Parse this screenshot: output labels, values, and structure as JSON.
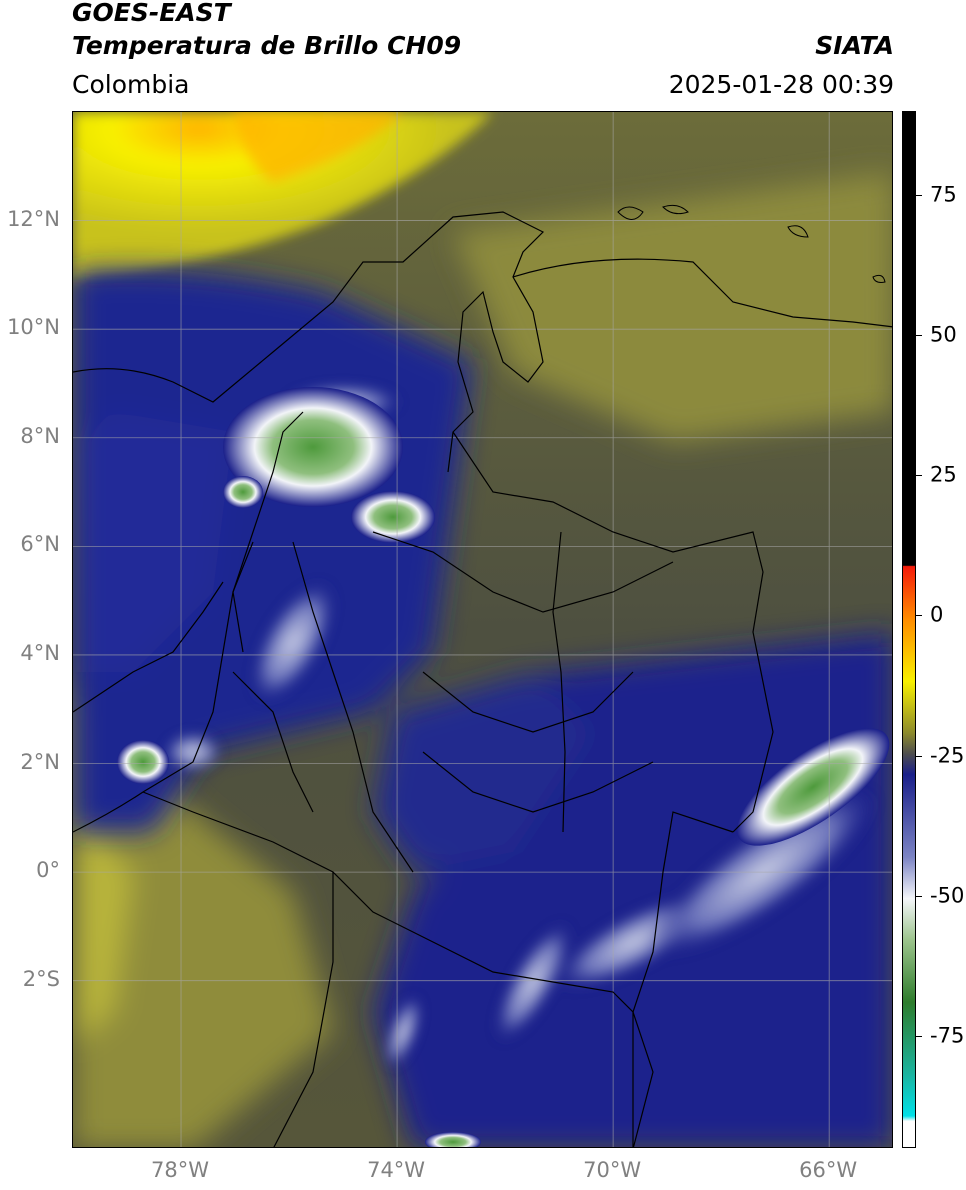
{
  "header": {
    "title_main": "GOES-EAST",
    "title_sub": "Temperatura de Brillo CH09",
    "org": "SIATA",
    "region": "Colombia",
    "datetime": "2025-01-28 00:39"
  },
  "map": {
    "lon_range": [
      -80,
      -64.8
    ],
    "lat_range": [
      -5.1,
      14
    ],
    "lat_labels": [
      {
        "value": 12,
        "text": "12°N"
      },
      {
        "value": 10,
        "text": "10°N"
      },
      {
        "value": 8,
        "text": "8°N"
      },
      {
        "value": 6,
        "text": "6°N"
      },
      {
        "value": 4,
        "text": "4°N"
      },
      {
        "value": 2,
        "text": "2°N"
      },
      {
        "value": 0,
        "text": "0°"
      },
      {
        "value": -2,
        "text": "2°S"
      }
    ],
    "lon_labels": [
      {
        "value": -78,
        "text": "78°W"
      },
      {
        "value": -74,
        "text": "74°W"
      },
      {
        "value": -70,
        "text": "70°W"
      },
      {
        "value": -66,
        "text": "66°W"
      }
    ],
    "colors": {
      "warm_yellow": "#f7f200",
      "orange": "#ffb300",
      "olive": "#9c9a3a",
      "dark_olive": "#55553c",
      "navy": "#1a1f8a",
      "white_cloud": "#e8ecf4",
      "green_core": "#4e9a3c"
    }
  },
  "colorbar": {
    "ticks": [
      {
        "value": 75,
        "text": "75"
      },
      {
        "value": 50,
        "text": "50"
      },
      {
        "value": 25,
        "text": "25"
      },
      {
        "value": 0,
        "text": "0"
      },
      {
        "value": -25,
        "text": "-25"
      },
      {
        "value": -50,
        "text": "-50"
      },
      {
        "value": -75,
        "text": "-75"
      }
    ],
    "range": [
      -95,
      90
    ]
  }
}
